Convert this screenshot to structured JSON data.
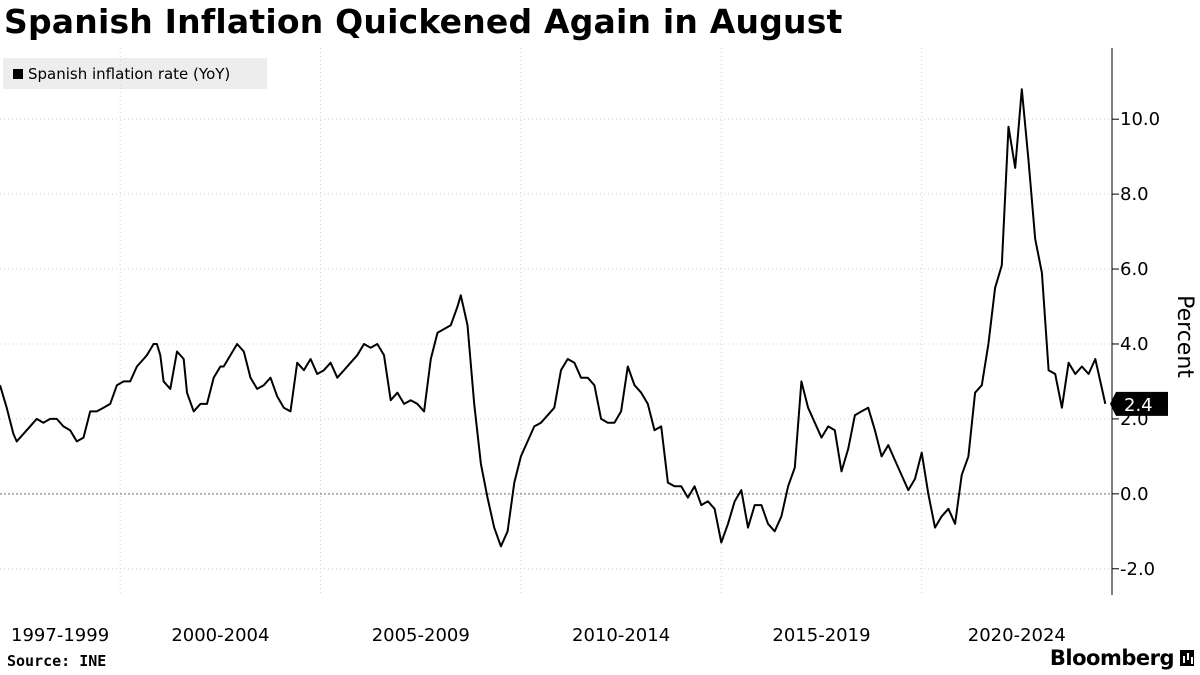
{
  "title": "Spanish Inflation Quickened Again in August",
  "legend": {
    "label": "Spanish inflation rate (YoY)"
  },
  "source": "Source: INE",
  "brand": "Bloomberg",
  "brand_icon": "bloomberg-terminal-icon",
  "colors": {
    "line": "#000000",
    "grid": "#c8c8c8",
    "callout_bg": "#000000",
    "callout_text": "#ffffff",
    "legend_bg": "#ededed"
  },
  "chart_data": {
    "type": "line",
    "title": "Spanish Inflation Quickened Again in August",
    "ylabel": "Percent",
    "xlabel": "",
    "ylim": [
      -2.7,
      11.9
    ],
    "y_ticks": [
      -2.0,
      0.0,
      2.0,
      4.0,
      6.0,
      8.0,
      10.0
    ],
    "y_tick_labels": [
      "-2.0",
      "0.0",
      "2.0",
      "4.0",
      "6.0",
      "8.0",
      "10.0"
    ],
    "xlim": [
      "1997-01",
      "2024-10"
    ],
    "x_ticks": [
      "2000-01",
      "2005-01",
      "2010-01",
      "2015-01",
      "2020-01"
    ],
    "x_group_labels": [
      "1997-1999",
      "2000-2004",
      "2005-2009",
      "2010-2014",
      "2015-2019",
      "2020-2024"
    ],
    "grid": true,
    "reference_lines": [
      0.0
    ],
    "legend_position": "top-left",
    "last_value_label": "2.4",
    "series": [
      {
        "name": "Spanish inflation rate (YoY)",
        "points": [
          [
            "1997-01",
            2.9
          ],
          [
            "1997-03",
            2.3
          ],
          [
            "1997-05",
            1.6
          ],
          [
            "1997-06",
            1.4
          ],
          [
            "1997-08",
            1.6
          ],
          [
            "1997-10",
            1.8
          ],
          [
            "1997-12",
            2.0
          ],
          [
            "1998-02",
            1.9
          ],
          [
            "1998-04",
            2.0
          ],
          [
            "1998-06",
            2.0
          ],
          [
            "1998-08",
            1.8
          ],
          [
            "1998-10",
            1.7
          ],
          [
            "1998-12",
            1.4
          ],
          [
            "1999-02",
            1.5
          ],
          [
            "1999-04",
            2.2
          ],
          [
            "1999-06",
            2.2
          ],
          [
            "1999-08",
            2.3
          ],
          [
            "1999-10",
            2.4
          ],
          [
            "1999-12",
            2.9
          ],
          [
            "2000-02",
            3.0
          ],
          [
            "2000-04",
            3.0
          ],
          [
            "2000-06",
            3.4
          ],
          [
            "2000-08",
            3.6
          ],
          [
            "2000-09",
            3.7
          ],
          [
            "2000-11",
            4.0
          ],
          [
            "2000-12",
            4.0
          ],
          [
            "2001-01",
            3.7
          ],
          [
            "2001-02",
            3.0
          ],
          [
            "2001-04",
            2.8
          ],
          [
            "2001-06",
            3.8
          ],
          [
            "2001-08",
            3.6
          ],
          [
            "2001-09",
            2.7
          ],
          [
            "2001-11",
            2.2
          ],
          [
            "2002-01",
            2.4
          ],
          [
            "2002-03",
            2.4
          ],
          [
            "2002-05",
            3.1
          ],
          [
            "2002-07",
            3.4
          ],
          [
            "2002-08",
            3.4
          ],
          [
            "2002-10",
            3.7
          ],
          [
            "2002-12",
            4.0
          ],
          [
            "2003-02",
            3.8
          ],
          [
            "2003-04",
            3.1
          ],
          [
            "2003-06",
            2.8
          ],
          [
            "2003-08",
            2.9
          ],
          [
            "2003-10",
            3.1
          ],
          [
            "2003-12",
            2.6
          ],
          [
            "2004-02",
            2.3
          ],
          [
            "2004-04",
            2.2
          ],
          [
            "2004-06",
            3.5
          ],
          [
            "2004-08",
            3.3
          ],
          [
            "2004-10",
            3.6
          ],
          [
            "2004-12",
            3.2
          ],
          [
            "2005-02",
            3.3
          ],
          [
            "2005-04",
            3.5
          ],
          [
            "2005-06",
            3.1
          ],
          [
            "2005-08",
            3.3
          ],
          [
            "2005-10",
            3.5
          ],
          [
            "2005-12",
            3.7
          ],
          [
            "2006-02",
            4.0
          ],
          [
            "2006-04",
            3.9
          ],
          [
            "2006-06",
            4.0
          ],
          [
            "2006-08",
            3.7
          ],
          [
            "2006-10",
            2.5
          ],
          [
            "2006-12",
            2.7
          ],
          [
            "2007-02",
            2.4
          ],
          [
            "2007-04",
            2.5
          ],
          [
            "2007-06",
            2.4
          ],
          [
            "2007-08",
            2.2
          ],
          [
            "2007-10",
            3.6
          ],
          [
            "2007-12",
            4.3
          ],
          [
            "2008-02",
            4.4
          ],
          [
            "2008-04",
            4.5
          ],
          [
            "2008-06",
            5.0
          ],
          [
            "2008-07",
            5.3
          ],
          [
            "2008-09",
            4.5
          ],
          [
            "2008-11",
            2.4
          ],
          [
            "2009-01",
            0.8
          ],
          [
            "2009-03",
            -0.1
          ],
          [
            "2009-05",
            -0.9
          ],
          [
            "2009-07",
            -1.4
          ],
          [
            "2009-09",
            -1.0
          ],
          [
            "2009-11",
            0.3
          ],
          [
            "2010-01",
            1.0
          ],
          [
            "2010-03",
            1.4
          ],
          [
            "2010-05",
            1.8
          ],
          [
            "2010-07",
            1.9
          ],
          [
            "2010-09",
            2.1
          ],
          [
            "2010-11",
            2.3
          ],
          [
            "2011-01",
            3.3
          ],
          [
            "2011-03",
            3.6
          ],
          [
            "2011-05",
            3.5
          ],
          [
            "2011-07",
            3.1
          ],
          [
            "2011-09",
            3.1
          ],
          [
            "2011-11",
            2.9
          ],
          [
            "2012-01",
            2.0
          ],
          [
            "2012-03",
            1.9
          ],
          [
            "2012-05",
            1.9
          ],
          [
            "2012-07",
            2.2
          ],
          [
            "2012-09",
            3.4
          ],
          [
            "2012-11",
            2.9
          ],
          [
            "2013-01",
            2.7
          ],
          [
            "2013-03",
            2.4
          ],
          [
            "2013-05",
            1.7
          ],
          [
            "2013-07",
            1.8
          ],
          [
            "2013-09",
            0.3
          ],
          [
            "2013-11",
            0.2
          ],
          [
            "2014-01",
            0.2
          ],
          [
            "2014-03",
            -0.1
          ],
          [
            "2014-05",
            0.2
          ],
          [
            "2014-07",
            -0.3
          ],
          [
            "2014-09",
            -0.2
          ],
          [
            "2014-11",
            -0.4
          ],
          [
            "2015-01",
            -1.3
          ],
          [
            "2015-03",
            -0.8
          ],
          [
            "2015-05",
            -0.2
          ],
          [
            "2015-07",
            0.1
          ],
          [
            "2015-09",
            -0.9
          ],
          [
            "2015-11",
            -0.3
          ],
          [
            "2016-01",
            -0.3
          ],
          [
            "2016-03",
            -0.8
          ],
          [
            "2016-05",
            -1.0
          ],
          [
            "2016-07",
            -0.6
          ],
          [
            "2016-09",
            0.2
          ],
          [
            "2016-11",
            0.7
          ],
          [
            "2017-01",
            3.0
          ],
          [
            "2017-03",
            2.3
          ],
          [
            "2017-05",
            1.9
          ],
          [
            "2017-07",
            1.5
          ],
          [
            "2017-09",
            1.8
          ],
          [
            "2017-11",
            1.7
          ],
          [
            "2018-01",
            0.6
          ],
          [
            "2018-03",
            1.2
          ],
          [
            "2018-05",
            2.1
          ],
          [
            "2018-07",
            2.2
          ],
          [
            "2018-09",
            2.3
          ],
          [
            "2018-11",
            1.7
          ],
          [
            "2019-01",
            1.0
          ],
          [
            "2019-03",
            1.3
          ],
          [
            "2019-05",
            0.9
          ],
          [
            "2019-07",
            0.5
          ],
          [
            "2019-09",
            0.1
          ],
          [
            "2019-11",
            0.4
          ],
          [
            "2020-01",
            1.1
          ],
          [
            "2020-03",
            0.0
          ],
          [
            "2020-05",
            -0.9
          ],
          [
            "2020-07",
            -0.6
          ],
          [
            "2020-09",
            -0.4
          ],
          [
            "2020-11",
            -0.8
          ],
          [
            "2021-01",
            0.5
          ],
          [
            "2021-03",
            1.0
          ],
          [
            "2021-05",
            2.7
          ],
          [
            "2021-07",
            2.9
          ],
          [
            "2021-09",
            4.0
          ],
          [
            "2021-11",
            5.5
          ],
          [
            "2022-01",
            6.1
          ],
          [
            "2022-03",
            9.8
          ],
          [
            "2022-05",
            8.7
          ],
          [
            "2022-07",
            10.8
          ],
          [
            "2022-09",
            8.9
          ],
          [
            "2022-11",
            6.8
          ],
          [
            "2023-01",
            5.9
          ],
          [
            "2023-03",
            3.3
          ],
          [
            "2023-05",
            3.2
          ],
          [
            "2023-07",
            2.3
          ],
          [
            "2023-09",
            3.5
          ],
          [
            "2023-11",
            3.2
          ],
          [
            "2024-01",
            3.4
          ],
          [
            "2024-03",
            3.2
          ],
          [
            "2024-05",
            3.6
          ],
          [
            "2024-07",
            2.8
          ],
          [
            "2024-08",
            2.4
          ]
        ]
      }
    ]
  }
}
